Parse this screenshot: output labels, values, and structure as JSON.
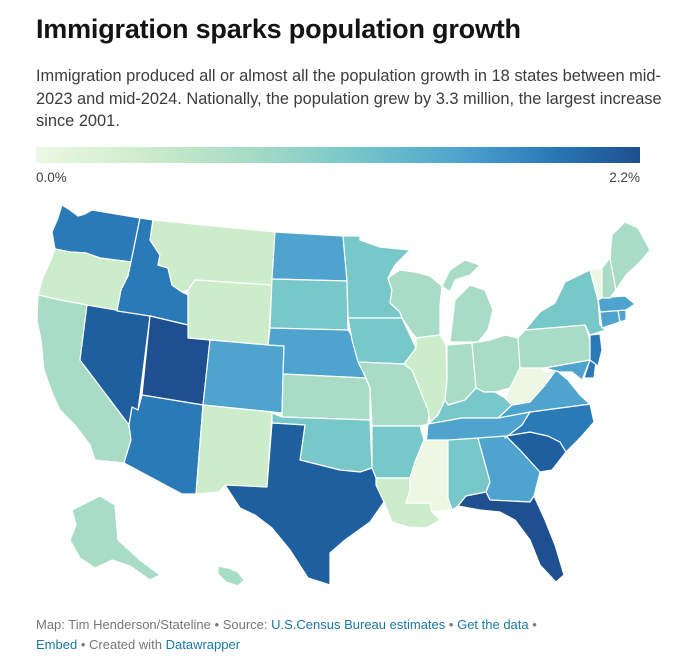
{
  "header": {
    "title": "Immigration sparks population growth",
    "description": "Immigration produced all or almost all the population growth in 18 states between mid-2023 and mid-2024. Nationally, the population grew by 3.3 million, the largest increase since 2001."
  },
  "legend": {
    "min_label": "0.0%",
    "max_label": "2.2%"
  },
  "colors": {
    "c1": "#ecf8e4",
    "c2": "#cdeccb",
    "c3": "#a8dcc6",
    "c4": "#79c8c9",
    "c5": "#4ea4cf",
    "c6": "#2b7ab8",
    "c7": "#1e5fa0",
    "c8": "#1e4f8e"
  },
  "states": {
    "WA": "c6",
    "OR": "c2",
    "CA": "c3",
    "NV": "c7",
    "ID": "c6",
    "MT": "c2",
    "WY": "c2",
    "UT": "c8",
    "AZ": "c6",
    "CO": "c5",
    "NM": "c2",
    "ND": "c5",
    "SD": "c4",
    "NE": "c5",
    "KS": "c3",
    "OK": "c4",
    "TX": "c7",
    "MN": "c4",
    "IA": "c4",
    "MO": "c3",
    "AR": "c4",
    "LA": "c2",
    "WI": "c3",
    "IL": "c2",
    "MI": "c3",
    "IN": "c3",
    "OH": "c3",
    "KY": "c4",
    "TN": "c5",
    "MS": "c1",
    "AL": "c4",
    "GA": "c5",
    "FL": "c8",
    "SC": "c7",
    "NC": "c6",
    "VA": "c5",
    "WV": "c1",
    "MD": "c5",
    "DE": "c6",
    "PA": "c3",
    "NY": "c4",
    "NJ": "c6",
    "CT": "c5",
    "RI": "c5",
    "MA": "c5",
    "VT": "c1",
    "NH": "c3",
    "ME": "c3",
    "AK": "c3",
    "HI": "c3"
  },
  "footer": {
    "credit": "Map: Tim Henderson/Stateline",
    "source_prefix": "Source:",
    "source_link": "U.S.Census Bureau estimates",
    "get_data": "Get the data",
    "embed": "Embed",
    "created_with": "Created with",
    "datawrapper": "Datawrapper",
    "sep": "•"
  }
}
